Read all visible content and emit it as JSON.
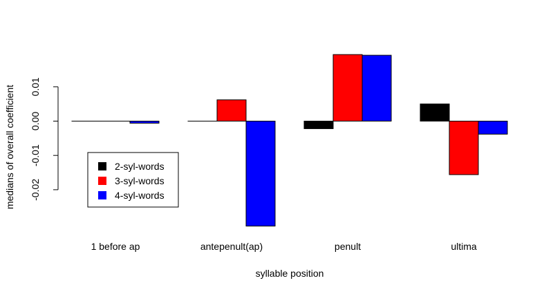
{
  "chart_data": {
    "type": "bar",
    "title": "",
    "xlabel": "syllable position",
    "ylabel": "medians of overall coefficient",
    "categories": [
      "1 before ap",
      "antepenult(ap)",
      "penult",
      "ultima"
    ],
    "series": [
      {
        "name": "2-syl-words",
        "color": "#000000",
        "values": [
          0,
          0,
          -0.0022,
          0.005
        ]
      },
      {
        "name": "3-syl-words",
        "color": "#ff0000",
        "values": [
          0,
          0.0062,
          0.0194,
          -0.0156
        ]
      },
      {
        "name": "4-syl-words",
        "color": "#0000ff",
        "values": [
          -0.0006,
          -0.0306,
          0.0192,
          -0.0038
        ]
      }
    ],
    "yticks": [
      {
        "value": 0.01,
        "label": "0.01"
      },
      {
        "value": 0.0,
        "label": "0.00"
      },
      {
        "value": -0.01,
        "label": "-0.01"
      },
      {
        "value": -0.02,
        "label": "-0.02"
      }
    ],
    "ylim": [
      -0.0306,
      0.0194
    ],
    "grid": false,
    "legend": {
      "position": "bottom-left",
      "entries": [
        "2-syl-words",
        "3-syl-words",
        "4-syl-words"
      ]
    }
  }
}
